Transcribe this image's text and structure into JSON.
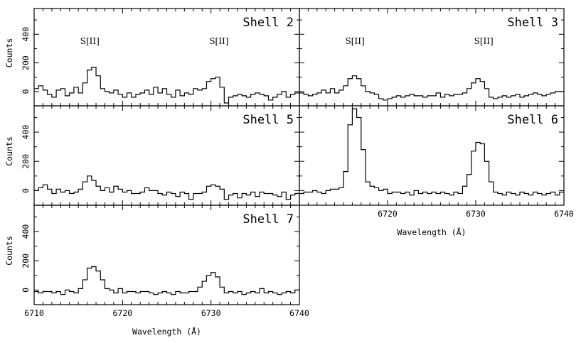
{
  "chart_data": {
    "type": "line",
    "xlabel": "Wavelength (Å)",
    "ylabel": "Counts",
    "xlim": [
      6710,
      6740
    ],
    "ylim": [
      -100,
      580
    ],
    "x_ticks": [
      6710,
      6720,
      6730,
      6740
    ],
    "y_ticks": [
      0,
      200,
      400
    ],
    "line_labels": [
      "S[II]",
      "S[II]"
    ],
    "panels": [
      {
        "name": "Shell 2",
        "line_labels_shown": true,
        "series": {
          "x": [
            6710.0,
            6710.5,
            6711.0,
            6711.5,
            6712.0,
            6712.5,
            6713.0,
            6713.5,
            6714.0,
            6714.5,
            6715.0,
            6715.5,
            6716.0,
            6716.5,
            6717.0,
            6717.5,
            6718.0,
            6718.5,
            6719.0,
            6719.5,
            6720.0,
            6720.5,
            6721.0,
            6721.5,
            6722.0,
            6722.5,
            6723.0,
            6723.5,
            6724.0,
            6724.5,
            6725.0,
            6725.5,
            6726.0,
            6726.5,
            6727.0,
            6727.5,
            6728.0,
            6728.5,
            6729.0,
            6729.5,
            6730.0,
            6730.5,
            6731.0,
            6731.5,
            6732.0,
            6732.5,
            6733.0,
            6733.5,
            6734.0,
            6734.5,
            6735.0,
            6735.5,
            6736.0,
            6736.5,
            6737.0,
            6737.5,
            6738.0,
            6738.5,
            6739.0,
            6739.5
          ],
          "y": [
            20,
            40,
            10,
            -20,
            -40,
            10,
            20,
            -30,
            -10,
            30,
            -10,
            60,
            150,
            170,
            110,
            20,
            0,
            -10,
            10,
            -20,
            -40,
            -10,
            -40,
            -20,
            -10,
            10,
            -20,
            30,
            -10,
            20,
            -20,
            -40,
            10,
            -30,
            -10,
            -20,
            20,
            10,
            20,
            70,
            90,
            100,
            30,
            -80,
            -40,
            -30,
            -20,
            -30,
            -40,
            -20,
            -10,
            -20,
            -30,
            -60,
            -40,
            -20,
            0,
            -40,
            -20,
            -10
          ]
        }
      },
      {
        "name": "Shell 3",
        "line_labels_shown": true,
        "series": {
          "x": [
            6710.0,
            6710.5,
            6711.0,
            6711.5,
            6712.0,
            6712.5,
            6713.0,
            6713.5,
            6714.0,
            6714.5,
            6715.0,
            6715.5,
            6716.0,
            6716.5,
            6717.0,
            6717.5,
            6718.0,
            6718.5,
            6719.0,
            6719.5,
            6720.0,
            6720.5,
            6721.0,
            6721.5,
            6722.0,
            6722.5,
            6723.0,
            6723.5,
            6724.0,
            6724.5,
            6725.0,
            6725.5,
            6726.0,
            6726.5,
            6727.0,
            6727.5,
            6728.0,
            6728.5,
            6729.0,
            6729.5,
            6730.0,
            6730.5,
            6731.0,
            6731.5,
            6732.0,
            6732.5,
            6733.0,
            6733.5,
            6734.0,
            6734.5,
            6735.0,
            6735.5,
            6736.0,
            6736.5,
            6737.0,
            6737.5,
            6738.0,
            6738.5,
            6739.0,
            6739.5
          ],
          "y": [
            -10,
            -20,
            -30,
            -20,
            -10,
            10,
            -10,
            20,
            -10,
            10,
            40,
            90,
            110,
            90,
            40,
            0,
            -10,
            -20,
            -50,
            -60,
            -50,
            -40,
            -30,
            -40,
            -30,
            -20,
            -30,
            -30,
            -40,
            -30,
            -30,
            -10,
            -40,
            -20,
            -30,
            -20,
            -20,
            -10,
            20,
            60,
            90,
            70,
            20,
            -40,
            -50,
            -40,
            -30,
            -40,
            -30,
            -20,
            -40,
            -30,
            -20,
            -10,
            -20,
            -30,
            -20,
            -10,
            0,
            0
          ]
        }
      },
      {
        "name": "Shell 5",
        "line_labels_shown": false,
        "series": {
          "x": [
            6710.0,
            6710.5,
            6711.0,
            6711.5,
            6712.0,
            6712.5,
            6713.0,
            6713.5,
            6714.0,
            6714.5,
            6715.0,
            6715.5,
            6716.0,
            6716.5,
            6717.0,
            6717.5,
            6718.0,
            6718.5,
            6719.0,
            6719.5,
            6720.0,
            6720.5,
            6721.0,
            6721.5,
            6722.0,
            6722.5,
            6723.0,
            6723.5,
            6724.0,
            6724.5,
            6725.0,
            6725.5,
            6726.0,
            6726.5,
            6727.0,
            6727.5,
            6728.0,
            6728.5,
            6729.0,
            6729.5,
            6730.0,
            6730.5,
            6731.0,
            6731.5,
            6732.0,
            6732.5,
            6733.0,
            6733.5,
            6734.0,
            6734.5,
            6735.0,
            6735.5,
            6736.0,
            6736.5,
            6737.0,
            6737.5,
            6738.0,
            6738.5,
            6739.0,
            6739.5
          ],
          "y": [
            0,
            20,
            40,
            10,
            -20,
            10,
            -10,
            0,
            -20,
            -10,
            10,
            60,
            100,
            70,
            30,
            0,
            20,
            -10,
            30,
            10,
            -10,
            0,
            -20,
            -20,
            -10,
            20,
            0,
            0,
            -20,
            -30,
            -10,
            -20,
            -40,
            -10,
            -20,
            -60,
            -20,
            -20,
            -10,
            30,
            40,
            30,
            10,
            -60,
            -30,
            -20,
            -50,
            -20,
            -30,
            -10,
            -40,
            -10,
            -20,
            -20,
            -30,
            -40,
            -10,
            -60,
            -30,
            -20
          ]
        }
      },
      {
        "name": "Shell 6",
        "line_labels_shown": false,
        "series": {
          "x": [
            6710.0,
            6710.5,
            6711.0,
            6711.5,
            6712.0,
            6712.5,
            6713.0,
            6713.5,
            6714.0,
            6714.5,
            6715.0,
            6715.5,
            6716.0,
            6716.5,
            6717.0,
            6717.5,
            6718.0,
            6718.5,
            6719.0,
            6719.5,
            6720.0,
            6720.5,
            6721.0,
            6721.5,
            6722.0,
            6722.5,
            6723.0,
            6723.5,
            6724.0,
            6724.5,
            6725.0,
            6725.5,
            6726.0,
            6726.5,
            6727.0,
            6727.5,
            6728.0,
            6728.5,
            6729.0,
            6729.5,
            6730.0,
            6730.5,
            6731.0,
            6731.5,
            6732.0,
            6732.5,
            6733.0,
            6733.5,
            6734.0,
            6734.5,
            6735.0,
            6735.5,
            6736.0,
            6736.5,
            6737.0,
            6737.5,
            6738.0,
            6738.5,
            6739.0,
            6739.5
          ],
          "y": [
            -20,
            -10,
            -10,
            0,
            -10,
            -20,
            0,
            10,
            10,
            20,
            130,
            450,
            560,
            500,
            280,
            60,
            30,
            20,
            0,
            10,
            -20,
            -10,
            -10,
            -20,
            -10,
            -30,
            0,
            -20,
            -10,
            -20,
            -10,
            -20,
            -10,
            -20,
            -30,
            -10,
            -20,
            30,
            110,
            270,
            330,
            320,
            200,
            60,
            -10,
            -20,
            -30,
            -10,
            -20,
            -30,
            -10,
            -20,
            -30,
            -10,
            -20,
            -30,
            -20,
            -10,
            -30,
            -10
          ]
        }
      },
      {
        "name": "Shell 7",
        "line_labels_shown": false,
        "series": {
          "x": [
            6710.0,
            6710.5,
            6711.0,
            6711.5,
            6712.0,
            6712.5,
            6713.0,
            6713.5,
            6714.0,
            6714.5,
            6715.0,
            6715.5,
            6716.0,
            6716.5,
            6717.0,
            6717.5,
            6718.0,
            6718.5,
            6719.0,
            6719.5,
            6720.0,
            6720.5,
            6721.0,
            6721.5,
            6722.0,
            6722.5,
            6723.0,
            6723.5,
            6724.0,
            6724.5,
            6725.0,
            6725.5,
            6726.0,
            6726.5,
            6727.0,
            6727.5,
            6728.0,
            6728.5,
            6729.0,
            6729.5,
            6730.0,
            6730.5,
            6731.0,
            6731.5,
            6732.0,
            6732.5,
            6733.0,
            6733.5,
            6734.0,
            6734.5,
            6735.0,
            6735.5,
            6736.0,
            6736.5,
            6737.0,
            6737.5,
            6738.0,
            6738.5,
            6739.0,
            6739.5
          ],
          "y": [
            -10,
            -20,
            -10,
            -10,
            -20,
            -10,
            -30,
            0,
            -10,
            -20,
            10,
            70,
            150,
            160,
            130,
            70,
            10,
            0,
            -20,
            10,
            -20,
            -10,
            -10,
            -20,
            -10,
            -10,
            -20,
            -30,
            -20,
            -10,
            -20,
            -30,
            -10,
            -20,
            -20,
            -10,
            -10,
            20,
            60,
            100,
            120,
            90,
            20,
            -20,
            -10,
            -20,
            -10,
            -30,
            -20,
            -10,
            -20,
            10,
            -20,
            -10,
            -20,
            -30,
            -20,
            -10,
            -20,
            0
          ]
        }
      }
    ]
  }
}
